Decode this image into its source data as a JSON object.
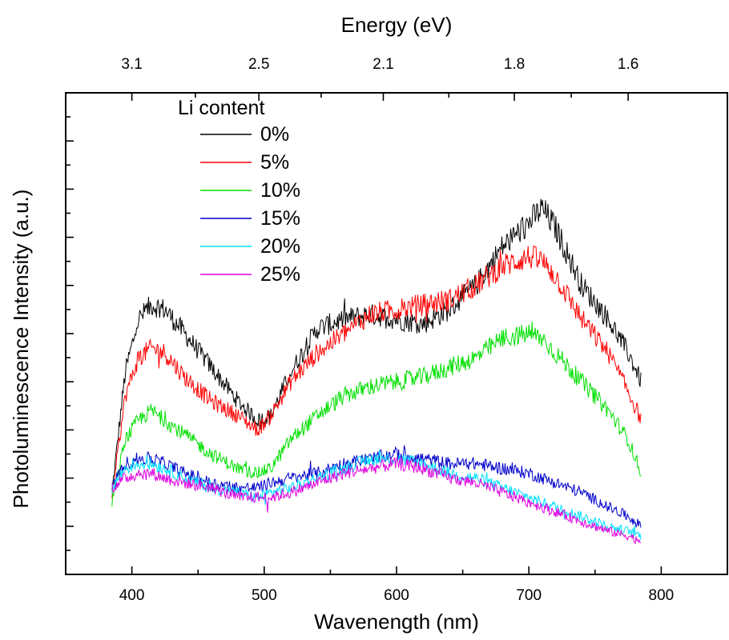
{
  "chart_data": {
    "type": "line",
    "xlabel": "Wavenength (nm)",
    "ylabel": "Photoluminescence Intensity (a.u.)",
    "top_axis_label": "Energy (eV)",
    "xlim": [
      350,
      850
    ],
    "ylim": [
      0,
      10
    ],
    "x_ticks": [
      400,
      500,
      600,
      700,
      800
    ],
    "y_tick_labels_shown": false,
    "top_axis_ticks": [
      {
        "label": "3.1",
        "wavelength": 400
      },
      {
        "label": "2.5",
        "wavelength": 496
      },
      {
        "label": "2.1",
        "wavelength": 590
      },
      {
        "label": "1.8",
        "wavelength": 689
      },
      {
        "label": "1.6",
        "wavelength": 775
      }
    ],
    "legend_title": "Li content",
    "legend_position": "top-left",
    "x": [
      385,
      395,
      405,
      415,
      425,
      440,
      460,
      480,
      495,
      505,
      520,
      540,
      560,
      580,
      600,
      620,
      640,
      660,
      680,
      700,
      710,
      720,
      740,
      760,
      775,
      785
    ],
    "series": [
      {
        "name": "0%",
        "color": "#000000",
        "values": [
          1.7,
          4.2,
          5.3,
          5.6,
          5.5,
          5.0,
          4.3,
          3.6,
          3.2,
          3.3,
          4.2,
          5.1,
          5.3,
          5.4,
          5.3,
          5.2,
          5.5,
          6.0,
          6.8,
          7.3,
          7.6,
          7.2,
          6.0,
          5.3,
          4.6,
          4.0
        ]
      },
      {
        "name": "5%",
        "color": "#ff0000",
        "values": [
          1.6,
          3.7,
          4.5,
          4.7,
          4.6,
          4.1,
          3.6,
          3.3,
          3.0,
          3.3,
          4.0,
          4.6,
          5.0,
          5.4,
          5.5,
          5.6,
          5.7,
          6.0,
          6.4,
          6.6,
          6.5,
          6.2,
          5.3,
          4.6,
          3.8,
          3.2
        ]
      },
      {
        "name": "10%",
        "color": "#00e000",
        "values": [
          1.5,
          2.8,
          3.2,
          3.4,
          3.2,
          2.9,
          2.5,
          2.2,
          2.1,
          2.2,
          2.8,
          3.3,
          3.7,
          3.9,
          4.0,
          4.1,
          4.3,
          4.5,
          4.9,
          5.0,
          4.9,
          4.6,
          4.0,
          3.4,
          2.8,
          2.1
        ]
      },
      {
        "name": "15%",
        "color": "#0000cc",
        "values": [
          1.8,
          2.3,
          2.4,
          2.4,
          2.3,
          2.1,
          1.9,
          1.8,
          1.8,
          1.9,
          2.0,
          2.1,
          2.3,
          2.4,
          2.5,
          2.4,
          2.3,
          2.3,
          2.2,
          2.1,
          2.0,
          1.9,
          1.7,
          1.4,
          1.2,
          1.0
        ]
      },
      {
        "name": "20%",
        "color": "#00e0ff",
        "values": [
          1.8,
          2.2,
          2.3,
          2.3,
          2.2,
          2.0,
          1.8,
          1.7,
          1.6,
          1.7,
          1.8,
          2.0,
          2.2,
          2.4,
          2.4,
          2.3,
          2.1,
          2.0,
          1.8,
          1.6,
          1.5,
          1.4,
          1.2,
          1.0,
          0.9,
          0.8
        ]
      },
      {
        "name": "25%",
        "color": "#e000e0",
        "values": [
          1.8,
          2.0,
          2.1,
          2.1,
          2.0,
          1.9,
          1.8,
          1.6,
          1.6,
          1.6,
          1.7,
          1.9,
          2.1,
          2.2,
          2.3,
          2.2,
          2.0,
          1.9,
          1.7,
          1.5,
          1.4,
          1.3,
          1.1,
          0.9,
          0.8,
          0.7
        ]
      }
    ]
  }
}
